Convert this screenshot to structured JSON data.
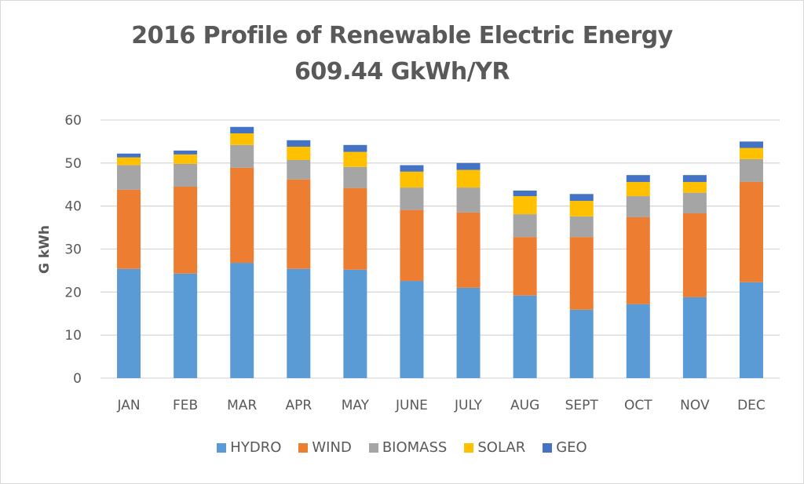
{
  "chart_data": {
    "type": "bar",
    "stacked": true,
    "title": "2016 Profile of Renewable Electric Energy",
    "subtitle": "609.44 GkWh/YR",
    "xlabel": "",
    "ylabel": "G kWh",
    "ylim": [
      0,
      60
    ],
    "yticks": [
      0,
      10,
      20,
      30,
      40,
      50,
      60
    ],
    "grid": true,
    "legend_position": "bottom",
    "categories": [
      "JAN",
      "FEB",
      "MAR",
      "APR",
      "MAY",
      "JUNE",
      "JULY",
      "AUG",
      "SEPT",
      "OCT",
      "NOV",
      "DEC"
    ],
    "series": [
      {
        "name": "HYDRO",
        "color": "#5b9bd5",
        "values": [
          25.4,
          24.3,
          26.8,
          25.4,
          25.2,
          22.6,
          21.0,
          19.2,
          15.9,
          17.2,
          18.8,
          22.3
        ]
      },
      {
        "name": "WIND",
        "color": "#ed7d31",
        "values": [
          18.4,
          20.2,
          22.1,
          20.8,
          19.0,
          16.5,
          17.5,
          13.6,
          16.9,
          20.2,
          19.5,
          23.3
        ]
      },
      {
        "name": "BIOMASS",
        "color": "#a5a5a5",
        "values": [
          5.7,
          5.3,
          5.3,
          4.5,
          4.9,
          5.2,
          5.8,
          5.3,
          4.8,
          4.9,
          4.8,
          5.3
        ]
      },
      {
        "name": "SOLAR",
        "color": "#ffc000",
        "values": [
          1.8,
          2.2,
          2.7,
          3.1,
          3.5,
          3.7,
          4.1,
          4.2,
          3.6,
          3.3,
          2.5,
          2.6
        ]
      },
      {
        "name": "GEO",
        "color": "#4472c4",
        "values": [
          0.9,
          0.9,
          1.5,
          1.5,
          1.6,
          1.5,
          1.6,
          1.3,
          1.6,
          1.6,
          1.6,
          1.5
        ]
      }
    ]
  }
}
